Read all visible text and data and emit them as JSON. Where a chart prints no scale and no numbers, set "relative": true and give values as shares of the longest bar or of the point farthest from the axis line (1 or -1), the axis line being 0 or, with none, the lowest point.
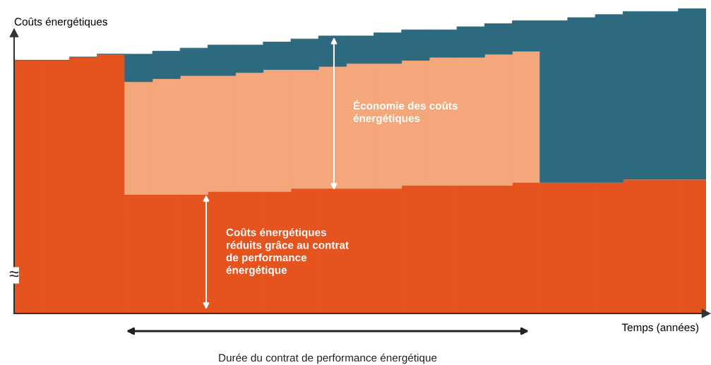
{
  "chart_data": {
    "type": "bar",
    "stacked": true,
    "relative": true,
    "xlabel": "Temps (années)",
    "ylabel": "Coûts énergétiques",
    "categories": [
      null,
      null,
      null,
      null,
      null,
      null,
      null,
      null,
      null,
      null,
      null,
      null,
      null,
      null,
      null,
      null,
      null,
      null,
      null,
      null,
      null,
      null,
      null,
      null,
      null
    ],
    "series": [
      {
        "color": "#e5531f",
        "values": [
          0.83,
          0.83,
          0.84,
          0.85,
          0.39,
          0.39,
          0.39,
          0.4,
          0.4,
          0.4,
          0.41,
          0.41,
          0.41,
          0.41,
          0.42,
          0.42,
          0.42,
          0.42,
          0.43,
          0.43,
          0.43,
          0.43,
          0.44,
          0.44,
          0.44
        ]
      },
      {
        "color": "#f3a77b",
        "values": [
          0,
          0,
          0,
          0,
          0.37,
          0.38,
          0.39,
          0.38,
          0.39,
          0.4,
          0.39,
          0.4,
          0.41,
          0.41,
          0.41,
          0.42,
          0.42,
          0.43,
          0.43,
          0,
          0,
          0,
          0,
          0,
          0
        ]
      },
      {
        "color": "#2d6a7f",
        "values": [
          0,
          0,
          0,
          0,
          0.09,
          0.09,
          0.09,
          0.1,
          0.09,
          0.09,
          0.1,
          0.1,
          0.09,
          0.1,
          0.1,
          0.09,
          0.1,
          0.1,
          0.1,
          0.53,
          0.54,
          0.55,
          0.55,
          0.55,
          0.56
        ]
      }
    ],
    "annotations": [
      "Économie des coûts\nénergétiques",
      "Coûts énergétiques\nréduits grâce au contrat\nde performance\nénergétique",
      "Durée du contrat de performance énergétique",
      "≈"
    ],
    "grid": false
  }
}
